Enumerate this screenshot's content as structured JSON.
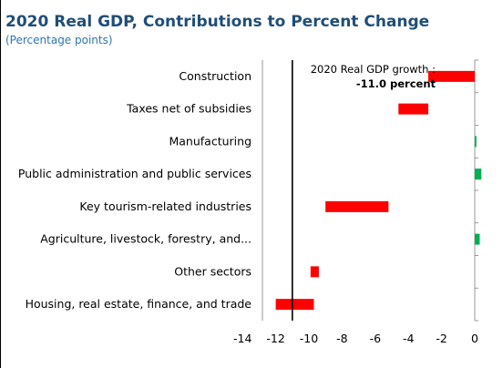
{
  "header": {
    "title": "2020 Real GDP, Contributions to Percent Change",
    "subtitle": "(Percentage points)"
  },
  "colors": {
    "title": "#1F4E79",
    "subtitle": "#2E75B6",
    "negative_bar": "#FF0000",
    "positive_bar": "#00B050",
    "axis": "#808080",
    "reference_line": "#000000"
  },
  "chart_data": {
    "type": "bar",
    "orientation": "horizontal",
    "title": "2020 Real GDP, Contributions to Percent Change",
    "subtitle": "(Percentage points)",
    "categories": [
      "Construction",
      "Taxes net of subsidies",
      "Manufacturing",
      "Public administration and public services",
      "Key tourism-related industries",
      "Agriculture, livestock, forestry, and...",
      "Other sectors",
      "Housing, real estate, finance, and trade"
    ],
    "bars": [
      {
        "start": 0,
        "end": -2.8
      },
      {
        "start": -2.8,
        "end": -4.6
      },
      {
        "start": 0,
        "end": 0.1
      },
      {
        "start": 0,
        "end": 0.4
      },
      {
        "start": -5.2,
        "end": -9.0
      },
      {
        "start": 0,
        "end": 0.3
      },
      {
        "start": -9.4,
        "end": -9.9
      },
      {
        "start": -9.7,
        "end": -12.0
      }
    ],
    "reference_line": {
      "value": -11.0
    },
    "annotation": {
      "line1": "2020 Real GDP growth :",
      "line2": "-11.0 percent"
    },
    "xlim": [
      -14,
      1
    ],
    "x_ticks": [
      -14,
      -12,
      -10,
      -8,
      -6,
      -4,
      -2,
      0
    ],
    "xlabel": "",
    "ylabel": "",
    "grid": false,
    "legend": "none"
  }
}
